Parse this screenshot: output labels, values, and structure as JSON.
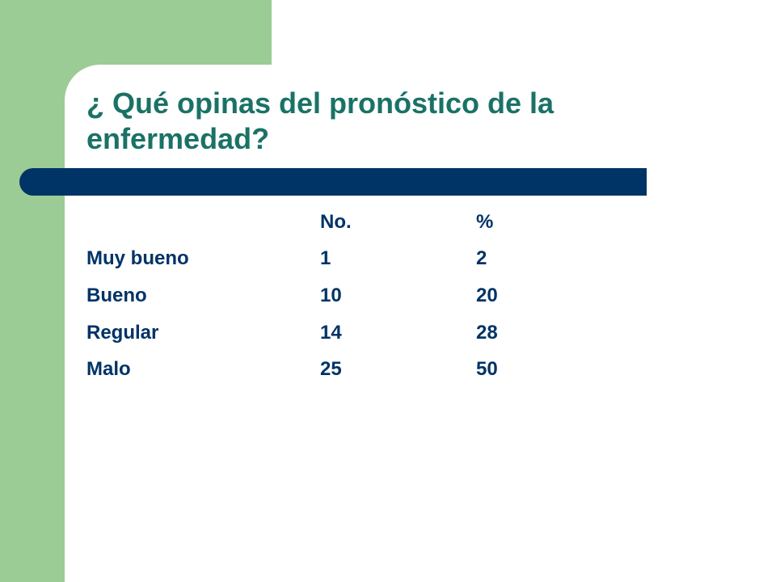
{
  "slide": {
    "title": "¿ Qué opinas del pronóstico de la enfermedad?",
    "colors": {
      "green_band": "#9ccc95",
      "title_text": "#1a7266",
      "rule_bar": "#003366",
      "table_text": "#003366",
      "background": "#ffffff"
    }
  },
  "table": {
    "headers": [
      "",
      "No.",
      "%"
    ],
    "rows": [
      {
        "label": "Muy bueno",
        "no": "1",
        "pct": "2"
      },
      {
        "label": "Bueno",
        "no": "10",
        "pct": "20"
      },
      {
        "label": "Regular",
        "no": "14",
        "pct": "28"
      },
      {
        "label": "Malo",
        "no": "25",
        "pct": "50"
      }
    ]
  }
}
